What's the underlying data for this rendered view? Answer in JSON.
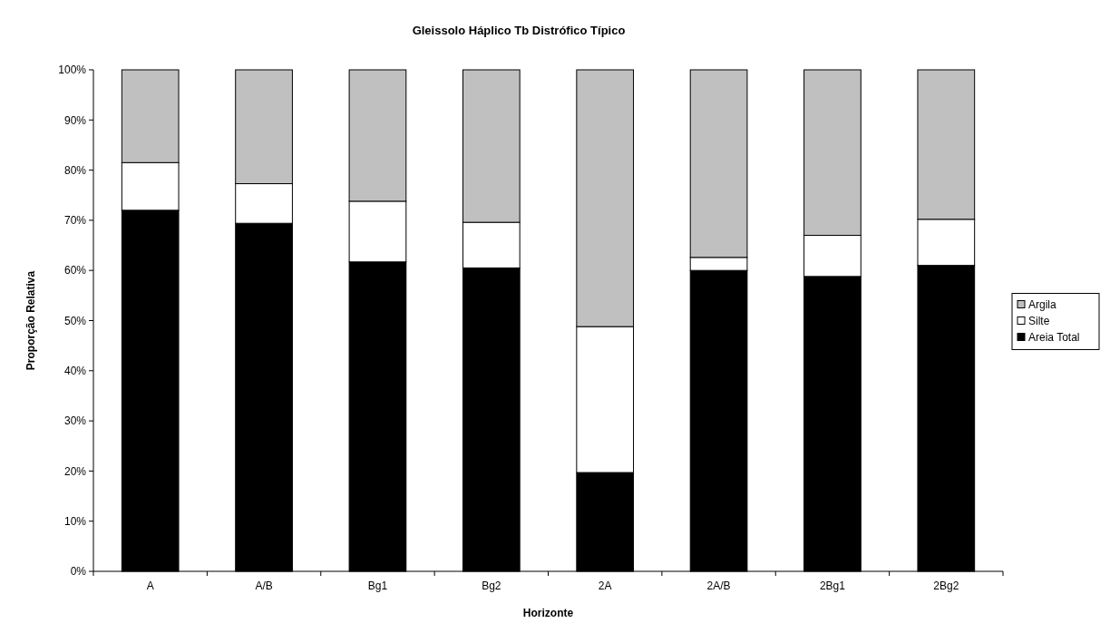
{
  "chart_data": {
    "type": "bar",
    "title": "Gleissolo Háplico Tb Distrófico Típico",
    "xlabel": "Horizonte",
    "ylabel": "Proporção Relativa",
    "stacked": true,
    "legend": "right",
    "grid": false,
    "categories": [
      "A",
      "A/B",
      "Bg1",
      "Bg2",
      "2A",
      "2A/B",
      "2Bg1",
      "2Bg2"
    ],
    "series": [
      {
        "name": "Areia Total",
        "color": "#000000",
        "values": [
          72,
          69.4,
          61.7,
          60.5,
          19.7,
          60,
          58.8,
          61
        ]
      },
      {
        "name": "Silte",
        "color": "#ffffff",
        "values": [
          9.5,
          7.9,
          12.1,
          9.1,
          29.1,
          2.6,
          8.2,
          9.2
        ]
      },
      {
        "name": "Argila",
        "color": "#c0c0c0",
        "values": [
          18.5,
          22.7,
          26.2,
          30.4,
          51.2,
          37.4,
          33,
          29.8
        ]
      }
    ],
    "ylim": [
      0,
      100
    ],
    "yticks": [
      {
        "value": 0,
        "label": "0%"
      },
      {
        "value": 10,
        "label": "10%"
      },
      {
        "value": 20,
        "label": "20%"
      },
      {
        "value": 30,
        "label": "30%"
      },
      {
        "value": 40,
        "label": "40%"
      },
      {
        "value": 50,
        "label": "50%"
      },
      {
        "value": 60,
        "label": "60%"
      },
      {
        "value": 70,
        "label": "70%"
      },
      {
        "value": 80,
        "label": "80%"
      },
      {
        "value": 90,
        "label": "90%"
      },
      {
        "value": 100,
        "label": "100%"
      }
    ]
  }
}
